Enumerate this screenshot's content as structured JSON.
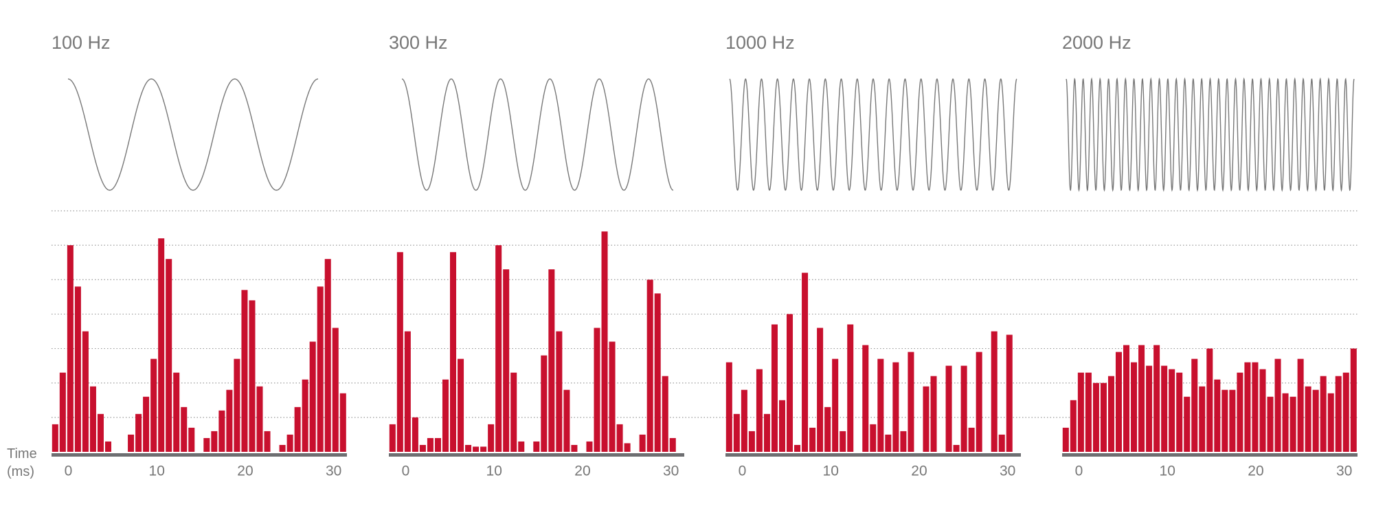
{
  "chart_data": [
    {
      "type": "bar",
      "title": "100 Hz",
      "xlabel": "Time (ms)",
      "color": "#c8102e",
      "xlim": [
        -1.9,
        31.5
      ],
      "xticks": [
        0,
        10,
        20,
        30
      ],
      "ylim": [
        0,
        7
      ],
      "yticks": [
        1,
        2,
        3,
        4,
        5,
        6,
        7
      ],
      "grid": true,
      "values": [
        0.8,
        2.3,
        6.0,
        4.8,
        3.5,
        1.9,
        1.1,
        0.3,
        0,
        0,
        0.5,
        1.1,
        1.6,
        2.7,
        6.2,
        5.6,
        2.3,
        1.3,
        0.7,
        0,
        0.4,
        0.6,
        1.2,
        1.8,
        2.7,
        4.7,
        4.4,
        1.9,
        0.6,
        0,
        0.2,
        0.5,
        1.3,
        2.1,
        3.2,
        4.8,
        5.6,
        3.6,
        1.7
      ]
    },
    {
      "type": "bar",
      "title": "300 Hz",
      "color": "#c8102e",
      "xlim": [
        -1.9,
        31.5
      ],
      "xticks": [
        0,
        10,
        20,
        30
      ],
      "ylim": [
        0,
        7
      ],
      "yticks": [
        1,
        2,
        3,
        4,
        5,
        6,
        7
      ],
      "grid": true,
      "values": [
        0.8,
        5.8,
        3.5,
        1.0,
        0.2,
        0.4,
        0.4,
        2.1,
        5.8,
        2.7,
        0.2,
        0.15,
        0.15,
        0.8,
        6.0,
        5.3,
        2.3,
        0.3,
        0,
        0.3,
        2.8,
        5.3,
        3.5,
        1.8,
        0.2,
        0,
        0.3,
        3.6,
        6.4,
        3.2,
        0.8,
        0.25,
        0,
        0.5,
        5.0,
        4.6,
        2.2,
        0.4,
        0
      ]
    },
    {
      "type": "bar",
      "title": "1000 Hz",
      "color": "#c8102e",
      "xlim": [
        -1.9,
        31.5
      ],
      "xticks": [
        0,
        10,
        20,
        30
      ],
      "ylim": [
        0,
        7
      ],
      "yticks": [
        1,
        2,
        3,
        4,
        5,
        6,
        7
      ],
      "grid": true,
      "values": [
        2.6,
        1.1,
        1.8,
        0.6,
        2.4,
        1.1,
        3.7,
        1.5,
        4.0,
        0.2,
        5.2,
        0.7,
        3.6,
        1.3,
        2.7,
        0.6,
        3.7,
        0,
        3.1,
        0.8,
        2.7,
        0.5,
        2.6,
        0.6,
        2.9,
        0,
        1.9,
        2.2,
        0,
        2.5,
        0.2,
        2.5,
        0.7,
        2.9,
        0,
        3.5,
        0.5,
        3.4,
        0
      ]
    },
    {
      "type": "bar",
      "title": "2000 Hz",
      "color": "#c8102e",
      "xlim": [
        -1.9,
        31.5
      ],
      "xticks": [
        0,
        10,
        20,
        30
      ],
      "ylim": [
        0,
        7
      ],
      "yticks": [
        1,
        2,
        3,
        4,
        5,
        6,
        7
      ],
      "grid": true,
      "values": [
        0.7,
        1.5,
        2.3,
        2.3,
        2.0,
        2.0,
        2.2,
        2.9,
        3.1,
        2.6,
        3.1,
        2.5,
        3.1,
        2.5,
        2.4,
        2.3,
        1.6,
        2.7,
        1.9,
        3.0,
        2.1,
        1.8,
        1.8,
        2.3,
        2.6,
        2.6,
        2.4,
        1.6,
        2.7,
        1.7,
        1.6,
        2.7,
        1.9,
        1.8,
        2.2,
        1.7,
        2.2,
        2.3,
        3.0
      ]
    }
  ]
}
